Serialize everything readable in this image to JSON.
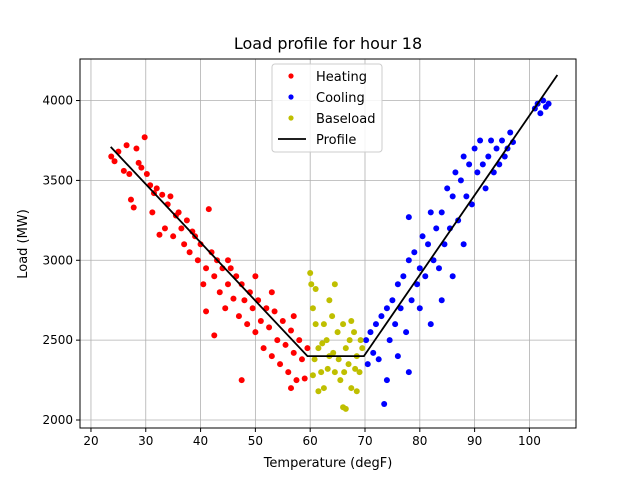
{
  "chart_data": {
    "type": "scatter",
    "title": "Load profile for hour 18",
    "xlabel": "Temperature (degF)",
    "ylabel": "Load (MW)",
    "xlim": [
      18.0,
      108.5
    ],
    "ylim": [
      1950,
      4260
    ],
    "xticks": [
      20,
      30,
      40,
      50,
      60,
      70,
      80,
      90,
      100
    ],
    "yticks": [
      2000,
      2500,
      3000,
      3500,
      4000
    ],
    "grid": true,
    "legend_position": "top-center",
    "series": [
      {
        "name": "Heating",
        "kind": "points",
        "color": "#ff0000",
        "points": [
          [
            23.7,
            3650
          ],
          [
            24.3,
            3620
          ],
          [
            25.0,
            3680
          ],
          [
            26.0,
            3560
          ],
          [
            26.5,
            3720
          ],
          [
            27.0,
            3540
          ],
          [
            27.3,
            3380
          ],
          [
            27.8,
            3330
          ],
          [
            28.3,
            3700
          ],
          [
            28.7,
            3610
          ],
          [
            29.2,
            3580
          ],
          [
            29.8,
            3770
          ],
          [
            30.2,
            3540
          ],
          [
            30.8,
            3470
          ],
          [
            31.2,
            3300
          ],
          [
            31.5,
            3420
          ],
          [
            32.0,
            3450
          ],
          [
            32.5,
            3160
          ],
          [
            33.0,
            3410
          ],
          [
            33.5,
            3200
          ],
          [
            34.0,
            3350
          ],
          [
            34.5,
            3400
          ],
          [
            35.0,
            3150
          ],
          [
            35.5,
            3280
          ],
          [
            36.0,
            3300
          ],
          [
            36.5,
            3200
          ],
          [
            37.0,
            3100
          ],
          [
            37.5,
            3250
          ],
          [
            38.0,
            3050
          ],
          [
            38.5,
            3180
          ],
          [
            39.0,
            3150
          ],
          [
            39.5,
            3000
          ],
          [
            40.0,
            3100
          ],
          [
            40.5,
            2850
          ],
          [
            41.0,
            2950
          ],
          [
            41.5,
            3320
          ],
          [
            42.0,
            3050
          ],
          [
            42.5,
            2900
          ],
          [
            43.0,
            3000
          ],
          [
            43.5,
            2800
          ],
          [
            44.0,
            2950
          ],
          [
            44.5,
            2700
          ],
          [
            45.0,
            2850
          ],
          [
            45.5,
            2950
          ],
          [
            46.0,
            2760
          ],
          [
            46.5,
            2900
          ],
          [
            47.0,
            2650
          ],
          [
            47.5,
            2850
          ],
          [
            48.0,
            2750
          ],
          [
            48.5,
            2600
          ],
          [
            49.0,
            2800
          ],
          [
            49.5,
            2700
          ],
          [
            50.0,
            2550
          ],
          [
            50.5,
            2750
          ],
          [
            51.0,
            2620
          ],
          [
            51.5,
            2450
          ],
          [
            52.0,
            2700
          ],
          [
            52.5,
            2580
          ],
          [
            53.0,
            2400
          ],
          [
            53.5,
            2680
          ],
          [
            54.0,
            2500
          ],
          [
            54.5,
            2350
          ],
          [
            55.0,
            2620
          ],
          [
            55.5,
            2470
          ],
          [
            56.0,
            2300
          ],
          [
            56.5,
            2560
          ],
          [
            57.0,
            2420
          ],
          [
            57.5,
            2250
          ],
          [
            58.0,
            2500
          ],
          [
            58.5,
            2380
          ],
          [
            59.0,
            2260
          ],
          [
            59.5,
            2450
          ],
          [
            41.0,
            2680
          ],
          [
            47.5,
            2250
          ],
          [
            42.5,
            2530
          ],
          [
            56.5,
            2200
          ],
          [
            45.0,
            3000
          ],
          [
            50.0,
            2900
          ],
          [
            53.0,
            2800
          ],
          [
            57.0,
            2650
          ]
        ]
      },
      {
        "name": "Cooling",
        "kind": "points",
        "color": "#0000ff",
        "points": [
          [
            70.2,
            2500
          ],
          [
            70.5,
            2350
          ],
          [
            71.0,
            2550
          ],
          [
            71.5,
            2420
          ],
          [
            72.0,
            2600
          ],
          [
            72.5,
            2380
          ],
          [
            73.0,
            2650
          ],
          [
            73.5,
            2100
          ],
          [
            74.0,
            2700
          ],
          [
            74.5,
            2500
          ],
          [
            75.0,
            2750
          ],
          [
            75.5,
            2600
          ],
          [
            76.0,
            2850
          ],
          [
            76.5,
            2700
          ],
          [
            77.0,
            2900
          ],
          [
            77.5,
            2550
          ],
          [
            78.0,
            3000
          ],
          [
            78.5,
            2750
          ],
          [
            79.0,
            3050
          ],
          [
            79.5,
            2850
          ],
          [
            80.0,
            2950
          ],
          [
            80.5,
            3150
          ],
          [
            81.0,
            2900
          ],
          [
            81.5,
            3100
          ],
          [
            82.0,
            3300
          ],
          [
            82.5,
            3000
          ],
          [
            83.0,
            3200
          ],
          [
            83.5,
            2950
          ],
          [
            84.0,
            3300
          ],
          [
            84.5,
            3100
          ],
          [
            85.0,
            3450
          ],
          [
            85.5,
            3200
          ],
          [
            86.0,
            3400
          ],
          [
            86.5,
            3550
          ],
          [
            87.0,
            3250
          ],
          [
            87.5,
            3500
          ],
          [
            88.0,
            3650
          ],
          [
            88.5,
            3400
          ],
          [
            89.0,
            3600
          ],
          [
            89.5,
            3350
          ],
          [
            90.0,
            3700
          ],
          [
            90.5,
            3550
          ],
          [
            91.0,
            3750
          ],
          [
            91.5,
            3600
          ],
          [
            92.0,
            3450
          ],
          [
            92.5,
            3650
          ],
          [
            93.0,
            3750
          ],
          [
            93.5,
            3550
          ],
          [
            94.0,
            3700
          ],
          [
            94.5,
            3600
          ],
          [
            95.0,
            3750
          ],
          [
            95.5,
            3650
          ],
          [
            96.0,
            3700
          ],
          [
            96.5,
            3800
          ],
          [
            97.0,
            3740
          ],
          [
            101.0,
            3950
          ],
          [
            101.5,
            3980
          ],
          [
            102.0,
            3920
          ],
          [
            102.5,
            4000
          ],
          [
            103.0,
            3960
          ],
          [
            103.5,
            3980
          ],
          [
            78.0,
            3270
          ],
          [
            80.0,
            2700
          ],
          [
            82.0,
            2600
          ],
          [
            84.0,
            2750
          ],
          [
            86.0,
            2900
          ],
          [
            88.0,
            3100
          ],
          [
            76.0,
            2400
          ],
          [
            78.0,
            2300
          ],
          [
            74.0,
            2250
          ]
        ]
      },
      {
        "name": "Baseload",
        "kind": "points",
        "color": "#bfbf00",
        "points": [
          [
            60.0,
            2920
          ],
          [
            60.2,
            2850
          ],
          [
            60.5,
            2700
          ],
          [
            61.0,
            2600
          ],
          [
            61.5,
            2450
          ],
          [
            62.0,
            2300
          ],
          [
            62.5,
            2200
          ],
          [
            63.0,
            2500
          ],
          [
            63.5,
            2400
          ],
          [
            64.0,
            2650
          ],
          [
            64.5,
            2300
          ],
          [
            65.0,
            2550
          ],
          [
            65.5,
            2250
          ],
          [
            66.0,
            2600
          ],
          [
            66.5,
            2450
          ],
          [
            67.0,
            2350
          ],
          [
            67.5,
            2200
          ],
          [
            68.0,
            2550
          ],
          [
            68.5,
            2400
          ],
          [
            69.0,
            2300
          ],
          [
            69.5,
            2450
          ],
          [
            60.5,
            2280
          ],
          [
            61.5,
            2180
          ],
          [
            62.5,
            2600
          ],
          [
            63.5,
            2750
          ],
          [
            64.5,
            2850
          ],
          [
            66.0,
            2080
          ],
          [
            66.5,
            2070
          ],
          [
            67.5,
            2620
          ],
          [
            68.5,
            2180
          ],
          [
            60.8,
            2380
          ],
          [
            62.2,
            2480
          ],
          [
            63.2,
            2320
          ],
          [
            64.2,
            2420
          ],
          [
            65.2,
            2380
          ],
          [
            66.2,
            2300
          ],
          [
            67.2,
            2500
          ],
          [
            68.2,
            2320
          ],
          [
            69.2,
            2500
          ],
          [
            61.0,
            2820
          ]
        ]
      },
      {
        "name": "Profile",
        "kind": "line",
        "color": "#000000",
        "points": [
          [
            23.6,
            3710
          ],
          [
            59.5,
            2400
          ],
          [
            69.8,
            2400
          ],
          [
            105.1,
            4160
          ]
        ]
      }
    ]
  }
}
